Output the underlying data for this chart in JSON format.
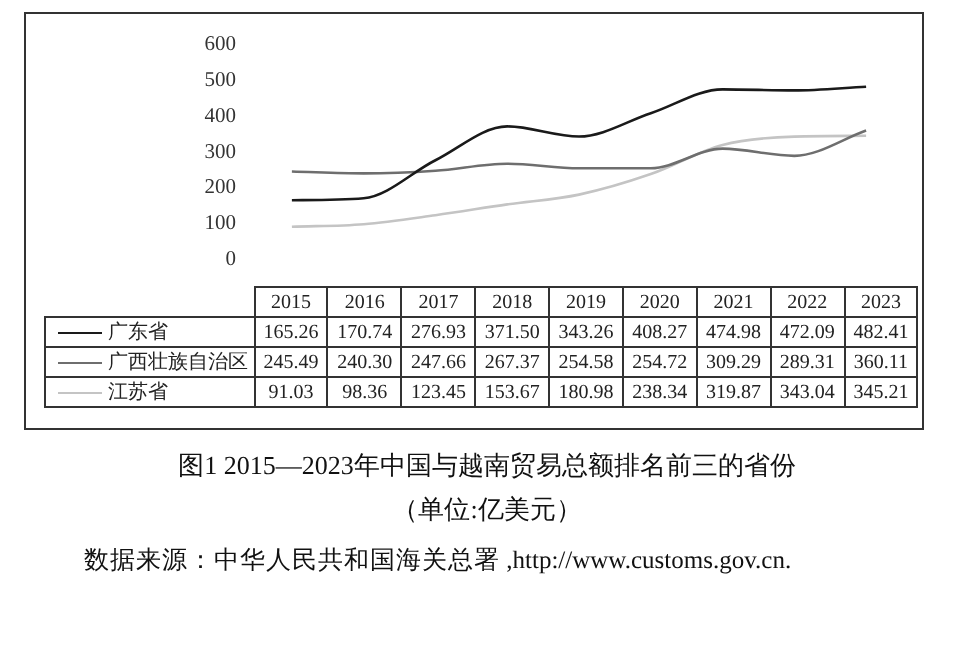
{
  "chart_data": {
    "type": "line",
    "title": "图1 2015—2023年中国与越南贸易总额排名前三的省份",
    "subtitle": "（单位:亿美元）",
    "annotations": [
      "数据来源：中华人民共和国海关总署 ,http://www.customs.gov.cn."
    ],
    "categories": [
      "2015",
      "2016",
      "2017",
      "2018",
      "2019",
      "2020",
      "2021",
      "2022",
      "2023"
    ],
    "series": [
      {
        "name": "广东省",
        "color": "#1a1a1a",
        "values": [
          165.26,
          170.74,
          276.93,
          371.5,
          343.26,
          408.27,
          474.98,
          472.09,
          482.41
        ],
        "value_labels": [
          "165.26",
          "170.74",
          "276.93",
          "371.50",
          "343.26",
          "408.27",
          "474.98",
          "472.09",
          "482.41"
        ]
      },
      {
        "name": "广西壮族自治区",
        "color": "#6e6e6e",
        "values": [
          245.49,
          240.3,
          247.66,
          267.37,
          254.58,
          254.72,
          309.29,
          289.31,
          360.11
        ],
        "value_labels": [
          "245.49",
          "240.30",
          "247.66",
          "267.37",
          "254.58",
          "254.72",
          "309.29",
          "289.31",
          "360.11"
        ]
      },
      {
        "name": "江苏省",
        "color": "#c4c4c4",
        "values": [
          91.03,
          98.36,
          123.45,
          153.67,
          180.98,
          238.34,
          319.87,
          343.04,
          345.21
        ],
        "value_labels": [
          "91.03",
          "98.36",
          "123.45",
          "153.67",
          "180.98",
          "238.34",
          "319.87",
          "343.04",
          "345.21"
        ]
      }
    ],
    "ylim": [
      0,
      600
    ],
    "yticks": [
      0,
      100,
      200,
      300,
      400,
      500,
      600
    ],
    "grid": false,
    "legend": "bottom",
    "marker": "none",
    "line_style": "solid"
  }
}
